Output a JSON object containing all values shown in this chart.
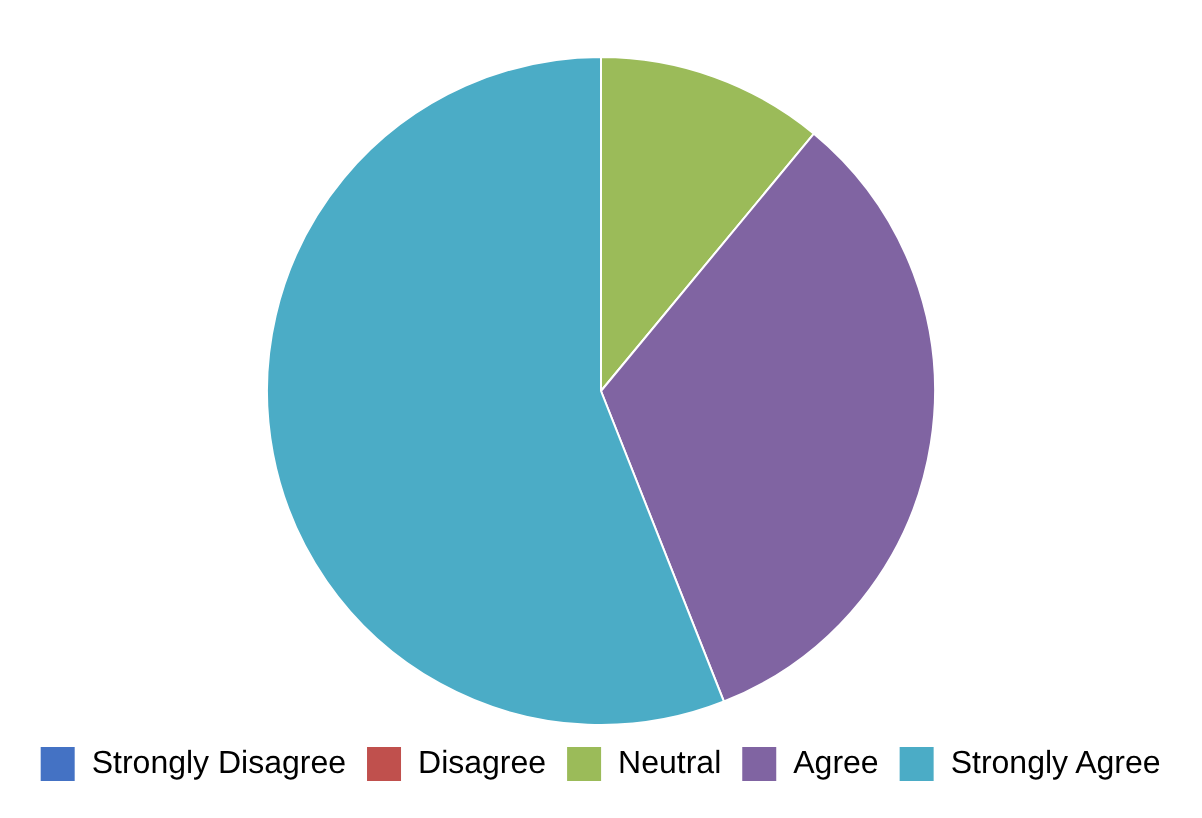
{
  "chart_data": {
    "type": "pie",
    "categories": [
      "Strongly Disagree",
      "Disagree",
      "Neutral",
      "Agree",
      "Strongly Agree"
    ],
    "values": [
      0,
      0,
      11,
      33,
      56
    ],
    "colors": [
      "#4472c4",
      "#c0504d",
      "#9bbb59",
      "#8064a2",
      "#4bacc6"
    ],
    "legend": "bottom"
  }
}
